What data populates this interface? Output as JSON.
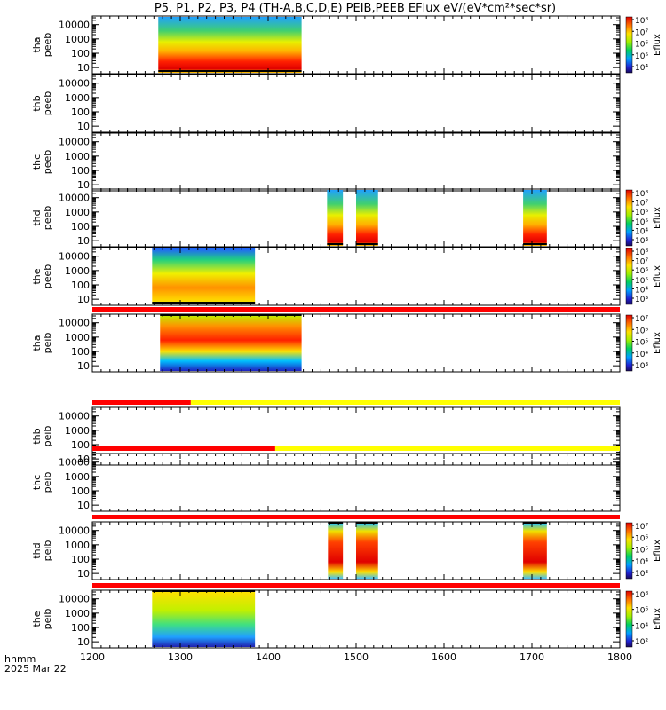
{
  "chart_data": {
    "type": "heatmap",
    "title": "P5, P1, P2, P3, P4 (TH-A,B,C,D,E) PEIB,PEEB EFlux eV/(eV*cm²*sec*sr)",
    "x_axis": {
      "range": [
        1200,
        1800
      ],
      "tick_labels": [
        "1200",
        "1300",
        "1400",
        "1500",
        "1600",
        "1700",
        "1800"
      ],
      "ticks": [
        1200,
        1300,
        1400,
        1500,
        1600,
        1700,
        1800
      ],
      "label_line1": "hhmm",
      "label_line2": "2025 Mar 22"
    },
    "y_tick_labels": [
      "10000",
      "1000",
      "100",
      "10"
    ],
    "y_ticks": [
      10000,
      1000,
      100,
      10
    ],
    "y_range": [
      5,
      30000
    ],
    "colorbar_label": "Eflux",
    "panels": [
      {
        "id": "tha-peeb",
        "label1": "tha",
        "label2": "peeb",
        "spec": "peeb",
        "segments": [
          [
            1275,
            1438
          ]
        ],
        "colorbar": [
          "10⁸",
          "10⁷",
          "10⁶",
          "10⁵",
          "10⁴"
        ],
        "bar_before": false,
        "bar_split": null
      },
      {
        "id": "thb-peeb",
        "label1": "thb",
        "label2": "peeb",
        "spec": "none",
        "segments": [],
        "colorbar": null,
        "bar_before": false,
        "bar_split": null
      },
      {
        "id": "thc-peeb",
        "label1": "thc",
        "label2": "peeb",
        "spec": "none",
        "segments": [],
        "colorbar": null,
        "bar_before": false,
        "bar_split": null
      },
      {
        "id": "thd-peeb",
        "label1": "thd",
        "label2": "peeb",
        "spec": "peeb",
        "segments": [
          [
            1467,
            1485
          ],
          [
            1500,
            1525
          ],
          [
            1690,
            1717
          ]
        ],
        "colorbar": [
          "10⁸",
          "10⁷",
          "10⁶",
          "10⁵",
          "10⁴",
          "10³"
        ],
        "bar_before": false,
        "bar_split": null
      },
      {
        "id": "the-peeb",
        "label1": "the",
        "label2": "peeb",
        "spec": "peeb_e",
        "segments": [
          [
            1268,
            1385
          ]
        ],
        "colorbar": [
          "10⁸",
          "10⁷",
          "10⁶",
          "10⁵",
          "10⁴",
          "10³"
        ],
        "bar_before": false,
        "bar_split": null
      },
      {
        "id": "tha-peib",
        "label1": "tha",
        "label2": "peib",
        "spec": "peib",
        "segments": [
          [
            1277,
            1438
          ]
        ],
        "colorbar": [
          "10⁷",
          "10⁶",
          "10⁵",
          "10⁴",
          "10³"
        ],
        "bar_before": true,
        "bar_split": 1800
      },
      {
        "id": "thb-peib",
        "label1": "thb",
        "label2": "peib",
        "spec": "none",
        "segments": [],
        "colorbar": null,
        "bar_before": true,
        "bar_split": 1312
      },
      {
        "id": "thc-peib",
        "label1": "thc",
        "label2": "peib",
        "spec": "none",
        "segments": [],
        "colorbar": null,
        "bar_before": true,
        "bar_split": 1408
      },
      {
        "id": "thd-peib",
        "label1": "thd",
        "label2": "peib",
        "spec": "peib_d",
        "segments": [
          [
            1468,
            1485
          ],
          [
            1500,
            1525
          ],
          [
            1690,
            1717
          ]
        ],
        "colorbar": [
          "10⁷",
          "10⁶",
          "10⁵",
          "10⁴",
          "10³"
        ],
        "bar_before": true,
        "bar_split": 1800
      },
      {
        "id": "the-peib",
        "label1": "the",
        "label2": "peib",
        "spec": "peib_e",
        "segments": [
          [
            1268,
            1385
          ]
        ],
        "colorbar": [
          "10⁸",
          "10⁶",
          "10⁴",
          "10²"
        ],
        "bar_before": true,
        "bar_split": 1800
      }
    ]
  }
}
